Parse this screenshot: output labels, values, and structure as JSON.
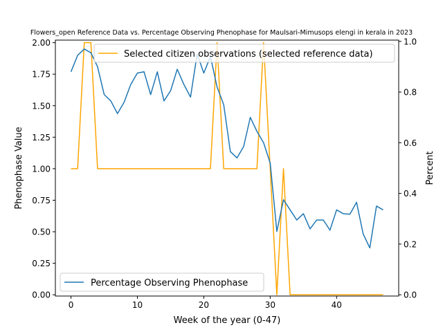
{
  "chart_data": {
    "type": "line",
    "title": "Flowers_open Reference Data vs. Percentage Observing Phenophase for Maulsari-Mimusops elengi in kerala in 2023",
    "xlabel": "Week of the year (0-47)",
    "ylabel_left": "Phenophase Value",
    "ylabel_right": "Percent",
    "xlim": [
      -2.35,
      49.35
    ],
    "ylim_left": [
      -0.01,
      2.02
    ],
    "ylim_right": [
      -0.005,
      1.005
    ],
    "x_ticks": [
      0,
      10,
      20,
      30,
      40
    ],
    "y_ticks_left": [
      "0.00",
      "0.25",
      "0.50",
      "0.75",
      "1.00",
      "1.25",
      "1.50",
      "1.75",
      "2.00"
    ],
    "y_ticks_right": [
      "0.0",
      "0.2",
      "0.4",
      "0.6",
      "0.8",
      "1.0"
    ],
    "grid": false,
    "series": [
      {
        "name": "Selected citizen observations (selected reference data)",
        "axis": "left",
        "color": "#ffa500",
        "legend_position": "top-right",
        "x": [
          0,
          1,
          2,
          3,
          4,
          5,
          6,
          7,
          8,
          9,
          10,
          11,
          12,
          13,
          14,
          15,
          16,
          17,
          18,
          19,
          20,
          21,
          22,
          23,
          24,
          25,
          26,
          27,
          28,
          29,
          30,
          31,
          32,
          33,
          34,
          35,
          36,
          37,
          38,
          39,
          40,
          41,
          42,
          43,
          44,
          45,
          46,
          47
        ],
        "values": [
          1,
          1,
          2,
          2,
          1,
          1,
          1,
          1,
          1,
          1,
          1,
          1,
          1,
          1,
          1,
          1,
          1,
          1,
          1,
          1,
          1,
          1,
          2,
          1,
          1,
          1,
          1,
          1,
          1,
          2,
          1,
          0,
          1,
          0,
          0,
          0,
          0,
          0,
          0,
          0,
          0,
          0,
          0,
          0,
          0,
          0,
          0,
          0
        ]
      },
      {
        "name": "Percentage Observing Phenophase",
        "axis": "right",
        "color": "#1f77b4",
        "legend_position": "bottom-left",
        "x": [
          0,
          1,
          2,
          3,
          4,
          5,
          6,
          7,
          8,
          9,
          10,
          11,
          12,
          13,
          14,
          15,
          16,
          17,
          18,
          19,
          20,
          21,
          22,
          23,
          24,
          25,
          26,
          27,
          28,
          29,
          30,
          31,
          32,
          33,
          34,
          35,
          36,
          37,
          38,
          39,
          40,
          41,
          42,
          43,
          44,
          45,
          46,
          47
        ],
        "values": [
          0.88,
          0.945,
          0.97,
          0.955,
          0.9,
          0.79,
          0.765,
          0.715,
          0.76,
          0.83,
          0.875,
          0.88,
          0.79,
          0.88,
          0.765,
          0.805,
          0.89,
          0.83,
          0.78,
          0.95,
          0.875,
          0.94,
          0.82,
          0.75,
          0.565,
          0.54,
          0.585,
          0.7,
          0.645,
          0.6,
          0.52,
          0.25,
          0.375,
          0.335,
          0.295,
          0.32,
          0.26,
          0.295,
          0.295,
          0.255,
          0.335,
          0.32,
          0.318,
          0.365,
          0.24,
          0.185,
          0.35,
          0.335
        ]
      }
    ]
  }
}
